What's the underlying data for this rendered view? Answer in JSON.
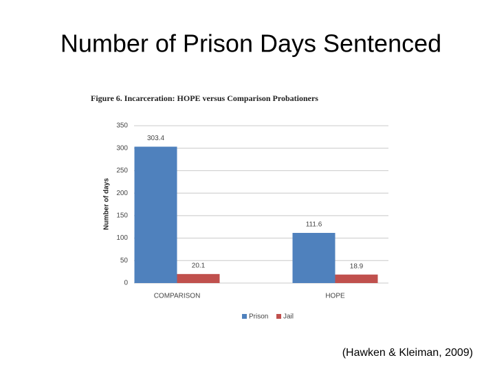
{
  "slide_title": "Number of Prison Days Sentenced",
  "citation": "(Hawken & Kleiman, 2009)",
  "chart_data": {
    "type": "bar",
    "title": "Figure 6. Incarceration: HOPE versus Comparison Probationers",
    "y_label": "Number of days",
    "categories": [
      "COMPARISON",
      "HOPE"
    ],
    "series": [
      {
        "name": "Prison",
        "color": "#4f81bd",
        "values": [
          303.4,
          111.6
        ]
      },
      {
        "name": "Jail",
        "color": "#c0504d",
        "values": [
          20.1,
          18.9
        ]
      }
    ],
    "ylim": [
      0,
      350
    ],
    "yticks": [
      0,
      50,
      100,
      150,
      200,
      250,
      300,
      350
    ],
    "grid": true,
    "legend": "bottom",
    "data_labels": true
  }
}
